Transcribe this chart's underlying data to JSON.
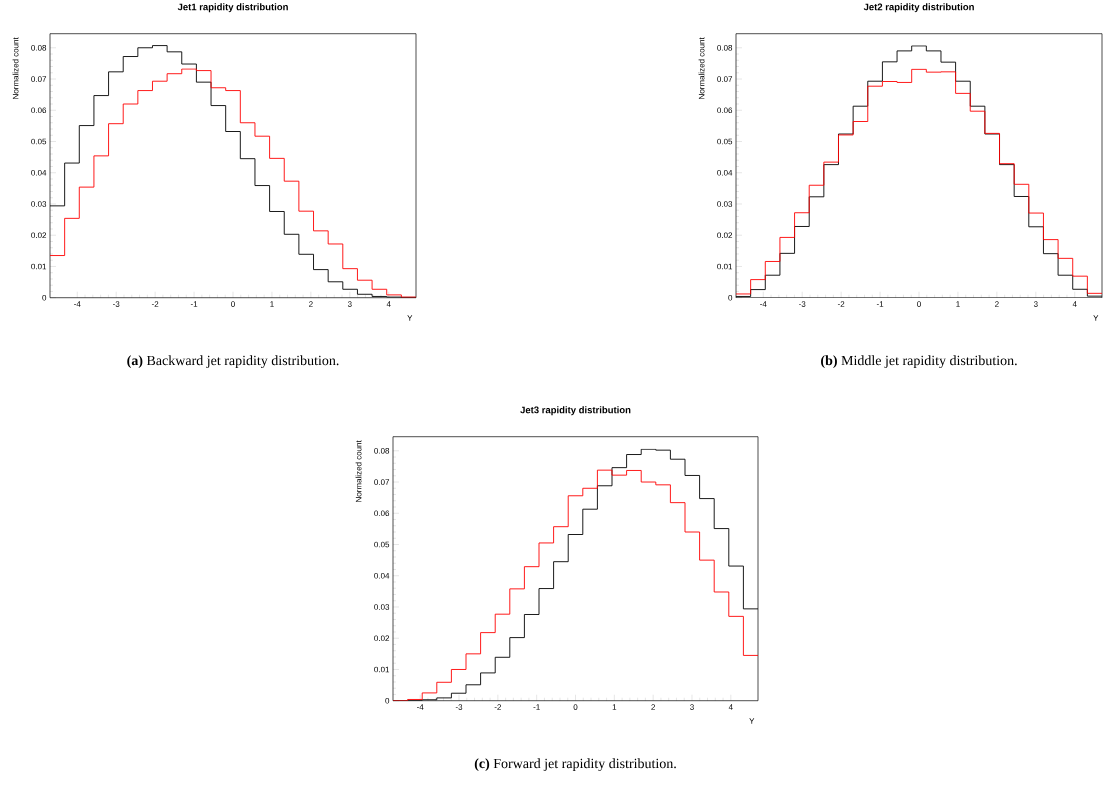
{
  "chart_data": [
    {
      "type": "histogram",
      "title": "Jet1 rapidity distribution",
      "xlabel": "Y",
      "ylabel": "Normalized count",
      "annotations": [
        "**(a)** Backward jet rapidity distribution."
      ],
      "bins": [
        -4.7,
        -4.324,
        -3.948,
        -3.572,
        -3.196,
        -2.82,
        -2.444,
        -2.068,
        -1.692,
        -1.316,
        -0.94,
        -0.564,
        -0.188,
        0.188,
        0.564,
        0.94,
        1.316,
        1.692,
        2.068,
        2.444,
        2.82,
        3.196,
        3.572,
        3.948,
        4.324,
        4.7
      ],
      "series": [
        {
          "color": "#000000",
          "values": [
            0.0294,
            0.0431,
            0.0551,
            0.0647,
            0.0723,
            0.0772,
            0.08,
            0.0807,
            0.0787,
            0.0748,
            0.069,
            0.0615,
            0.0532,
            0.0445,
            0.0359,
            0.0276,
            0.0203,
            0.0139,
            0.009,
            0.0051,
            0.0027,
            0.0011,
            0.0004,
            0.0002,
            0.0001
          ]
        },
        {
          "color": "#ff0000",
          "values": [
            0.0135,
            0.0254,
            0.0354,
            0.0454,
            0.0557,
            0.062,
            0.0663,
            0.0693,
            0.0717,
            0.0732,
            0.0727,
            0.0672,
            0.0663,
            0.056,
            0.0517,
            0.0446,
            0.0373,
            0.0277,
            0.0214,
            0.0172,
            0.0093,
            0.0056,
            0.0027,
            0.0009,
            0.0002
          ]
        }
      ],
      "xlim": [
        -4.7,
        4.7
      ],
      "ylim": [
        0,
        0.0845
      ],
      "xticks": [
        -4,
        -3,
        -2,
        -1,
        0,
        1,
        2,
        3,
        4
      ],
      "yticks": [
        0,
        0.01,
        0.02,
        0.03,
        0.04,
        0.05,
        0.06,
        0.07,
        0.08
      ]
    },
    {
      "type": "histogram",
      "title": "Jet2 rapidity distribution",
      "xlabel": "Y",
      "ylabel": "Normalized count",
      "annotations": [
        "**(b)** Middle jet rapidity distribution."
      ],
      "bins": [
        -4.7,
        -4.324,
        -3.948,
        -3.572,
        -3.196,
        -2.82,
        -2.444,
        -2.068,
        -1.692,
        -1.316,
        -0.94,
        -0.564,
        -0.188,
        0.188,
        0.564,
        0.94,
        1.316,
        1.692,
        2.068,
        2.444,
        2.82,
        3.196,
        3.572,
        3.948,
        4.324,
        4.7
      ],
      "series": [
        {
          "color": "#000000",
          "values": [
            0.0004,
            0.0026,
            0.0072,
            0.0142,
            0.0228,
            0.0323,
            0.0426,
            0.0524,
            0.0613,
            0.0693,
            0.0755,
            0.079,
            0.0806,
            0.079,
            0.0754,
            0.0693,
            0.0613,
            0.0524,
            0.0426,
            0.0324,
            0.0227,
            0.0141,
            0.0072,
            0.0027,
            0.0005
          ]
        },
        {
          "color": "#ff0000",
          "values": [
            0.0012,
            0.0058,
            0.0116,
            0.0193,
            0.0272,
            0.036,
            0.0434,
            0.0521,
            0.0564,
            0.0677,
            0.0692,
            0.0689,
            0.0731,
            0.0722,
            0.0723,
            0.0654,
            0.0597,
            0.0526,
            0.0429,
            0.0363,
            0.0271,
            0.0186,
            0.0126,
            0.0069,
            0.0014
          ]
        }
      ],
      "xlim": [
        -4.7,
        4.7
      ],
      "ylim": [
        0,
        0.0845
      ],
      "xticks": [
        -4,
        -3,
        -2,
        -1,
        0,
        1,
        2,
        3,
        4
      ],
      "yticks": [
        0,
        0.01,
        0.02,
        0.03,
        0.04,
        0.05,
        0.06,
        0.07,
        0.08
      ]
    },
    {
      "type": "histogram",
      "title": "Jet3 rapidity distribution",
      "xlabel": "Y",
      "ylabel": "Normalized count",
      "annotations": [
        "**(c)** Forward jet rapidity distribution."
      ],
      "bins": [
        -4.7,
        -4.324,
        -3.948,
        -3.572,
        -3.196,
        -2.82,
        -2.444,
        -2.068,
        -1.692,
        -1.316,
        -0.94,
        -0.564,
        -0.188,
        0.188,
        0.564,
        0.94,
        1.316,
        1.692,
        2.068,
        2.444,
        2.82,
        3.196,
        3.572,
        3.948,
        4.324,
        4.7
      ],
      "series": [
        {
          "color": "#000000",
          "values": [
            0.0,
            0.0001,
            0.0003,
            0.0009,
            0.0024,
            0.0051,
            0.0089,
            0.0139,
            0.0202,
            0.0276,
            0.0359,
            0.0445,
            0.0532,
            0.0613,
            0.0688,
            0.0746,
            0.0788,
            0.0805,
            0.0802,
            0.0773,
            0.0721,
            0.0647,
            0.0551,
            0.0431,
            0.0294
          ]
        },
        {
          "color": "#ff0000",
          "values": [
            0.0,
            0.0004,
            0.0025,
            0.0059,
            0.01,
            0.015,
            0.0218,
            0.0277,
            0.0358,
            0.0429,
            0.0505,
            0.0557,
            0.0656,
            0.068,
            0.0738,
            0.0722,
            0.0737,
            0.07,
            0.0691,
            0.0634,
            0.054,
            0.045,
            0.0348,
            0.027,
            0.0145
          ]
        }
      ],
      "xlim": [
        -4.7,
        4.7
      ],
      "ylim": [
        0,
        0.0845
      ],
      "xticks": [
        -4,
        -3,
        -2,
        -1,
        0,
        1,
        2,
        3,
        4
      ],
      "yticks": [
        0,
        0.01,
        0.02,
        0.03,
        0.04,
        0.05,
        0.06,
        0.07,
        0.08
      ]
    }
  ]
}
